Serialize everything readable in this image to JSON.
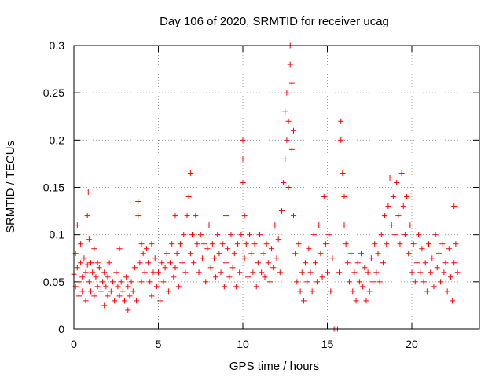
{
  "chart_data": {
    "type": "scatter",
    "title": "Day 106 of 2020, SRMTID for receiver ucag",
    "xlabel": "GPS time / hours",
    "ylabel": "SRMTID / TECUs",
    "xlim": [
      0,
      24
    ],
    "ylim": [
      0,
      0.3
    ],
    "xticks": [
      0,
      5,
      10,
      15,
      20
    ],
    "yticks": [
      0,
      0.05,
      0.1,
      0.15,
      0.2,
      0.25,
      0.3
    ],
    "xtick_labels": [
      "0",
      "5",
      "10",
      "15",
      "20"
    ],
    "ytick_labels": [
      "0",
      "0.05",
      "0.1",
      "0.15",
      "0.2",
      "0.25",
      "0.3"
    ],
    "grid": true,
    "marker": "plus",
    "series": [
      {
        "name": "SRMTID",
        "color": "#ff0000",
        "points": [
          [
            0.0,
            0.058
          ],
          [
            0.1,
            0.08
          ],
          [
            0.1,
            0.045
          ],
          [
            0.2,
            0.065
          ],
          [
            0.2,
            0.11
          ],
          [
            0.3,
            0.05
          ],
          [
            0.3,
            0.035
          ],
          [
            0.4,
            0.07
          ],
          [
            0.4,
            0.09
          ],
          [
            0.5,
            0.055
          ],
          [
            0.5,
            0.04
          ],
          [
            0.6,
            0.075
          ],
          [
            0.7,
            0.06
          ],
          [
            0.7,
            0.03
          ],
          [
            0.8,
            0.068
          ],
          [
            0.8,
            0.12
          ],
          [
            0.85,
            0.145
          ],
          [
            0.9,
            0.095
          ],
          [
            0.9,
            0.05
          ],
          [
            1.0,
            0.07
          ],
          [
            1.0,
            0.04
          ],
          [
            1.1,
            0.06
          ],
          [
            1.2,
            0.085
          ],
          [
            1.2,
            0.035
          ],
          [
            1.3,
            0.055
          ],
          [
            1.4,
            0.07
          ],
          [
            1.4,
            0.045
          ],
          [
            1.5,
            0.065
          ],
          [
            1.6,
            0.04
          ],
          [
            1.7,
            0.05
          ],
          [
            1.8,
            0.06
          ],
          [
            1.8,
            0.025
          ],
          [
            1.9,
            0.045
          ],
          [
            2.0,
            0.055
          ],
          [
            2.0,
            0.035
          ],
          [
            2.1,
            0.07
          ],
          [
            2.2,
            0.04
          ],
          [
            2.3,
            0.05
          ],
          [
            2.4,
            0.03
          ],
          [
            2.5,
            0.06
          ],
          [
            2.6,
            0.045
          ],
          [
            2.7,
            0.085
          ],
          [
            2.7,
            0.035
          ],
          [
            2.8,
            0.05
          ],
          [
            2.9,
            0.04
          ],
          [
            3.0,
            0.03
          ],
          [
            3.1,
            0.055
          ],
          [
            3.2,
            0.02
          ],
          [
            3.2,
            0.045
          ],
          [
            3.3,
            0.035
          ],
          [
            3.4,
            0.05
          ],
          [
            3.5,
            0.04
          ],
          [
            3.6,
            0.065
          ],
          [
            3.7,
            0.03
          ],
          [
            3.8,
            0.12
          ],
          [
            3.8,
            0.135
          ],
          [
            3.9,
            0.07
          ],
          [
            4.0,
            0.09
          ],
          [
            4.0,
            0.05
          ],
          [
            4.1,
            0.08
          ],
          [
            4.2,
            0.06
          ],
          [
            4.3,
            0.085
          ],
          [
            4.4,
            0.07
          ],
          [
            4.5,
            0.05
          ],
          [
            4.6,
            0.09
          ],
          [
            4.6,
            0.035
          ],
          [
            4.7,
            0.06
          ],
          [
            4.8,
            0.075
          ],
          [
            4.9,
            0.045
          ],
          [
            5.0,
            0.06
          ],
          [
            5.1,
            0.03
          ],
          [
            5.2,
            0.07
          ],
          [
            5.3,
            0.05
          ],
          [
            5.4,
            0.065
          ],
          [
            5.5,
            0.08
          ],
          [
            5.6,
            0.04
          ],
          [
            5.7,
            0.07
          ],
          [
            5.8,
            0.09
          ],
          [
            5.9,
            0.055
          ],
          [
            6.0,
            0.12
          ],
          [
            6.0,
            0.065
          ],
          [
            6.1,
            0.08
          ],
          [
            6.2,
            0.045
          ],
          [
            6.3,
            0.09
          ],
          [
            6.4,
            0.07
          ],
          [
            6.5,
            0.1
          ],
          [
            6.6,
            0.06
          ],
          [
            6.7,
            0.12
          ],
          [
            6.8,
            0.14
          ],
          [
            6.9,
            0.165
          ],
          [
            6.9,
            0.08
          ],
          [
            7.0,
            0.1
          ],
          [
            7.1,
            0.07
          ],
          [
            7.2,
            0.12
          ],
          [
            7.3,
            0.09
          ],
          [
            7.4,
            0.06
          ],
          [
            7.5,
            0.1
          ],
          [
            7.6,
            0.075
          ],
          [
            7.7,
            0.09
          ],
          [
            7.8,
            0.05
          ],
          [
            7.9,
            0.085
          ],
          [
            8.0,
            0.11
          ],
          [
            8.1,
            0.065
          ],
          [
            8.2,
            0.09
          ],
          [
            8.3,
            0.075
          ],
          [
            8.4,
            0.055
          ],
          [
            8.5,
            0.1
          ],
          [
            8.6,
            0.08
          ],
          [
            8.7,
            0.06
          ],
          [
            8.8,
            0.09
          ],
          [
            8.9,
            0.045
          ],
          [
            9.0,
            0.12
          ],
          [
            9.0,
            0.07
          ],
          [
            9.1,
            0.085
          ],
          [
            9.2,
            0.055
          ],
          [
            9.3,
            0.1
          ],
          [
            9.4,
            0.065
          ],
          [
            9.5,
            0.08
          ],
          [
            9.6,
            0.045
          ],
          [
            9.7,
            0.09
          ],
          [
            9.8,
            0.06
          ],
          [
            9.9,
            0.1
          ],
          [
            10.0,
            0.2
          ],
          [
            10.0,
            0.18
          ],
          [
            10.0,
            0.155
          ],
          [
            10.1,
            0.12
          ],
          [
            10.1,
            0.075
          ],
          [
            10.2,
            0.09
          ],
          [
            10.3,
            0.055
          ],
          [
            10.4,
            0.1
          ],
          [
            10.5,
            0.08
          ],
          [
            10.6,
            0.06
          ],
          [
            10.7,
            0.09
          ],
          [
            10.8,
            0.045
          ],
          [
            10.9,
            0.07
          ],
          [
            11.0,
            0.1
          ],
          [
            11.1,
            0.06
          ],
          [
            11.2,
            0.08
          ],
          [
            11.3,
            0.055
          ],
          [
            11.4,
            0.09
          ],
          [
            11.5,
            0.07
          ],
          [
            11.6,
            0.05
          ],
          [
            11.7,
            0.085
          ],
          [
            11.8,
            0.065
          ],
          [
            11.9,
            0.11
          ],
          [
            12.0,
            0.075
          ],
          [
            12.1,
            0.095
          ],
          [
            12.2,
            0.06
          ],
          [
            12.3,
            0.125
          ],
          [
            12.4,
            0.155
          ],
          [
            12.5,
            0.18
          ],
          [
            12.5,
            0.23
          ],
          [
            12.6,
            0.25
          ],
          [
            12.6,
            0.2
          ],
          [
            12.7,
            0.22
          ],
          [
            12.7,
            0.15
          ],
          [
            12.8,
            0.28
          ],
          [
            12.8,
            0.3
          ],
          [
            12.9,
            0.26
          ],
          [
            12.9,
            0.19
          ],
          [
            13.0,
            0.21
          ],
          [
            13.0,
            0.12
          ],
          [
            13.1,
            0.08
          ],
          [
            13.2,
            0.05
          ],
          [
            13.3,
            0.09
          ],
          [
            13.4,
            0.04
          ],
          [
            13.5,
            0.06
          ],
          [
            13.6,
            0.03
          ],
          [
            13.7,
            0.07
          ],
          [
            13.8,
            0.05
          ],
          [
            13.9,
            0.085
          ],
          [
            14.0,
            0.06
          ],
          [
            14.1,
            0.04
          ],
          [
            14.2,
            0.1
          ],
          [
            14.3,
            0.07
          ],
          [
            14.4,
            0.05
          ],
          [
            14.5,
            0.11
          ],
          [
            14.6,
            0.08
          ],
          [
            14.7,
            0.055
          ],
          [
            14.8,
            0.14
          ],
          [
            14.9,
            0.09
          ],
          [
            15.0,
            0.06
          ],
          [
            15.1,
            0.1
          ],
          [
            15.2,
            0.04
          ],
          [
            15.3,
            0.075
          ],
          [
            15.4,
            0.0
          ],
          [
            15.5,
            0.0
          ],
          [
            15.6,
            0.0
          ],
          [
            15.7,
            0.06
          ],
          [
            15.8,
            0.22
          ],
          [
            15.8,
            0.2
          ],
          [
            15.9,
            0.165
          ],
          [
            16.0,
            0.14
          ],
          [
            16.0,
            0.11
          ],
          [
            16.1,
            0.09
          ],
          [
            16.2,
            0.07
          ],
          [
            16.3,
            0.05
          ],
          [
            16.4,
            0.08
          ],
          [
            16.5,
            0.04
          ],
          [
            16.6,
            0.06
          ],
          [
            16.7,
            0.03
          ],
          [
            16.8,
            0.07
          ],
          [
            16.9,
            0.05
          ],
          [
            17.0,
            0.08
          ],
          [
            17.1,
            0.045
          ],
          [
            17.2,
            0.065
          ],
          [
            17.3,
            0.03
          ],
          [
            17.4,
            0.06
          ],
          [
            17.5,
            0.04
          ],
          [
            17.6,
            0.075
          ],
          [
            17.7,
            0.05
          ],
          [
            17.8,
            0.09
          ],
          [
            17.9,
            0.06
          ],
          [
            18.0,
            0.08
          ],
          [
            18.1,
            0.05
          ],
          [
            18.2,
            0.1
          ],
          [
            18.3,
            0.07
          ],
          [
            18.4,
            0.12
          ],
          [
            18.5,
            0.09
          ],
          [
            18.6,
            0.13
          ],
          [
            18.7,
            0.16
          ],
          [
            18.8,
            0.11
          ],
          [
            18.9,
            0.14
          ],
          [
            19.0,
            0.1
          ],
          [
            19.1,
            0.155
          ],
          [
            19.2,
            0.12
          ],
          [
            19.3,
            0.09
          ],
          [
            19.4,
            0.165
          ],
          [
            19.5,
            0.13
          ],
          [
            19.6,
            0.1
          ],
          [
            19.7,
            0.14
          ],
          [
            19.8,
            0.08
          ],
          [
            19.9,
            0.11
          ],
          [
            20.0,
            0.06
          ],
          [
            20.1,
            0.09
          ],
          [
            20.2,
            0.05
          ],
          [
            20.3,
            0.07
          ],
          [
            20.4,
            0.1
          ],
          [
            20.5,
            0.06
          ],
          [
            20.6,
            0.085
          ],
          [
            20.7,
            0.05
          ],
          [
            20.8,
            0.07
          ],
          [
            20.9,
            0.04
          ],
          [
            21.0,
            0.09
          ],
          [
            21.1,
            0.06
          ],
          [
            21.2,
            0.075
          ],
          [
            21.3,
            0.045
          ],
          [
            21.4,
            0.1
          ],
          [
            21.5,
            0.065
          ],
          [
            21.6,
            0.08
          ],
          [
            21.7,
            0.05
          ],
          [
            21.8,
            0.09
          ],
          [
            21.9,
            0.06
          ],
          [
            22.0,
            0.07
          ],
          [
            22.1,
            0.04
          ],
          [
            22.2,
            0.085
          ],
          [
            22.3,
            0.055
          ],
          [
            22.4,
            0.03
          ],
          [
            22.5,
            0.13
          ],
          [
            22.5,
            0.07
          ],
          [
            22.6,
            0.09
          ],
          [
            22.7,
            0.06
          ]
        ]
      }
    ]
  }
}
